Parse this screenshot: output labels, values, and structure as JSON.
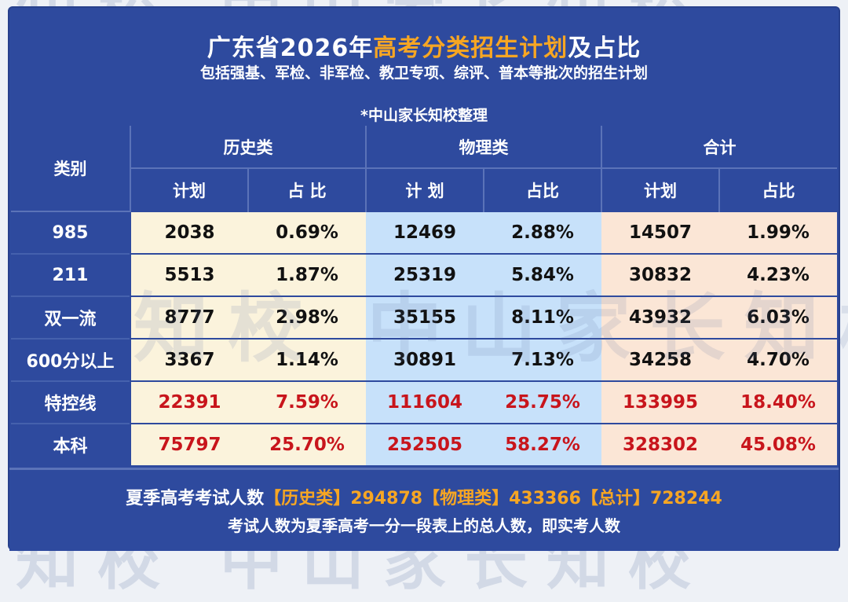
{
  "watermark": {
    "text": "知校  中山家长知校"
  },
  "header": {
    "title_prefix": "广东省2026年",
    "title_highlight": "高考分类招生计划",
    "title_suffix": "及占比",
    "subtitle": "包括强基、军检、非军检、教卫专项、综评、普本等批次的招生计划",
    "credit": "*中山家长知校整理"
  },
  "table": {
    "category_header": "类别",
    "groups": [
      "历史类",
      "物理类",
      "合计"
    ],
    "subheaders": [
      "计划",
      "占 比",
      "计 划",
      "占比",
      "计划",
      "占比"
    ],
    "rows": [
      {
        "label": "985",
        "values": [
          "2038",
          "0.69%",
          "12469",
          "2.88%",
          "14507",
          "1.99%"
        ]
      },
      {
        "label": "211",
        "values": [
          "5513",
          "1.87%",
          "25319",
          "5.84%",
          "30832",
          "4.23%"
        ]
      },
      {
        "label": "双一流",
        "values": [
          "8777",
          "2.98%",
          "35155",
          "8.11%",
          "43932",
          "6.03%"
        ]
      },
      {
        "label": "600分以上",
        "values": [
          "3367",
          "1.14%",
          "30891",
          "7.13%",
          "34258",
          "4.70%"
        ]
      },
      {
        "label": "特控线",
        "values": [
          "22391",
          "7.59%",
          "111604",
          "25.75%",
          "133995",
          "18.40%"
        ]
      },
      {
        "label": "本科",
        "values": [
          "75797",
          "25.70%",
          "252505",
          "58.27%",
          "328302",
          "45.08%"
        ]
      }
    ]
  },
  "footer": {
    "line1_label": "夏季高考考试人数",
    "line1_history": "【历史类】294878",
    "line1_physics": "【物理类】433366",
    "line1_total": "【总计】728244",
    "line2": "考试人数为夏季高考一分一段表上的总人数，即实考人数"
  },
  "colors": {
    "panel_blue": "#2e4a9e",
    "highlight_orange": "#f7a623",
    "history_fill": "#fbf3dc",
    "physics_fill": "#c7e1fa",
    "total_fill": "#fbe6d6",
    "emphasis_red": "#c8151c"
  }
}
